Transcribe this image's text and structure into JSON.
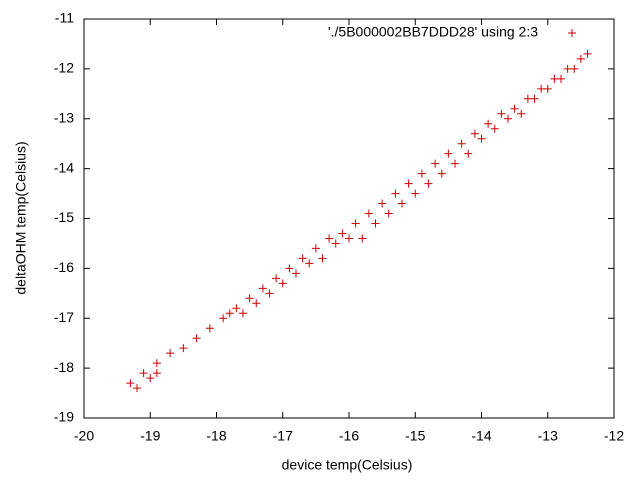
{
  "chart_data": {
    "type": "scatter",
    "x_label": "device temp(Celsius)",
    "y_label": "deltaOHM temp(Celsius)",
    "xlim": [
      -20,
      -12
    ],
    "xticks": [
      -20,
      -19,
      -18,
      -17,
      -16,
      -15,
      -14,
      -13,
      -12
    ],
    "ylim": [
      -19,
      -11
    ],
    "yticks": [
      -19,
      -18,
      -17,
      -16,
      -15,
      -14,
      -13,
      -12,
      -11
    ],
    "legend": "top-right",
    "series": [
      {
        "name": "'./5B000002BB7DDD28' using 2:3",
        "color": "#cc0000",
        "x": [
          -19.3,
          -19.1,
          -18.9,
          -18.7,
          -18.5,
          -18.3,
          -18.1,
          -17.9,
          -17.7,
          -17.5,
          -17.3,
          -17.1,
          -16.9,
          -16.7,
          -16.5,
          -16.3,
          -16.1,
          -15.9,
          -15.7,
          -15.5,
          -15.3,
          -15.1,
          -14.9,
          -14.7,
          -14.5,
          -14.3,
          -14.1,
          -13.9,
          -13.7,
          -13.5,
          -13.3,
          -13.1,
          -12.9,
          -12.7,
          -12.5,
          -12.4,
          -19.2,
          -19.0,
          -18.9,
          -17.8,
          -17.6,
          -17.4,
          -17.2,
          -17.0,
          -16.8,
          -16.6,
          -16.4,
          -16.2,
          -16.0,
          -15.8,
          -15.6,
          -15.4,
          -15.2,
          -15.0,
          -14.8,
          -14.6,
          -14.4,
          -14.2,
          -14.0,
          -13.8,
          -13.6,
          -13.4,
          -13.2,
          -13.0,
          -12.8,
          -12.6
        ],
        "values": [
          -18.3,
          -18.1,
          -17.9,
          -17.7,
          -17.6,
          -17.4,
          -17.2,
          -17.0,
          -16.8,
          -16.6,
          -16.4,
          -16.2,
          -16.0,
          -15.8,
          -15.6,
          -15.4,
          -15.3,
          -15.1,
          -14.9,
          -14.7,
          -14.5,
          -14.3,
          -14.1,
          -13.9,
          -13.7,
          -13.5,
          -13.3,
          -13.1,
          -12.9,
          -12.8,
          -12.6,
          -12.4,
          -12.2,
          -12.0,
          -11.8,
          -11.7,
          -18.4,
          -18.2,
          -18.1,
          -16.9,
          -16.9,
          -16.7,
          -16.5,
          -16.3,
          -16.1,
          -15.9,
          -15.8,
          -15.5,
          -15.4,
          -15.4,
          -15.1,
          -14.9,
          -14.7,
          -14.5,
          -14.3,
          -14.1,
          -13.9,
          -13.7,
          -13.4,
          -13.2,
          -13.0,
          -12.9,
          -12.6,
          -12.4,
          -12.2,
          -12.0
        ]
      }
    ]
  }
}
